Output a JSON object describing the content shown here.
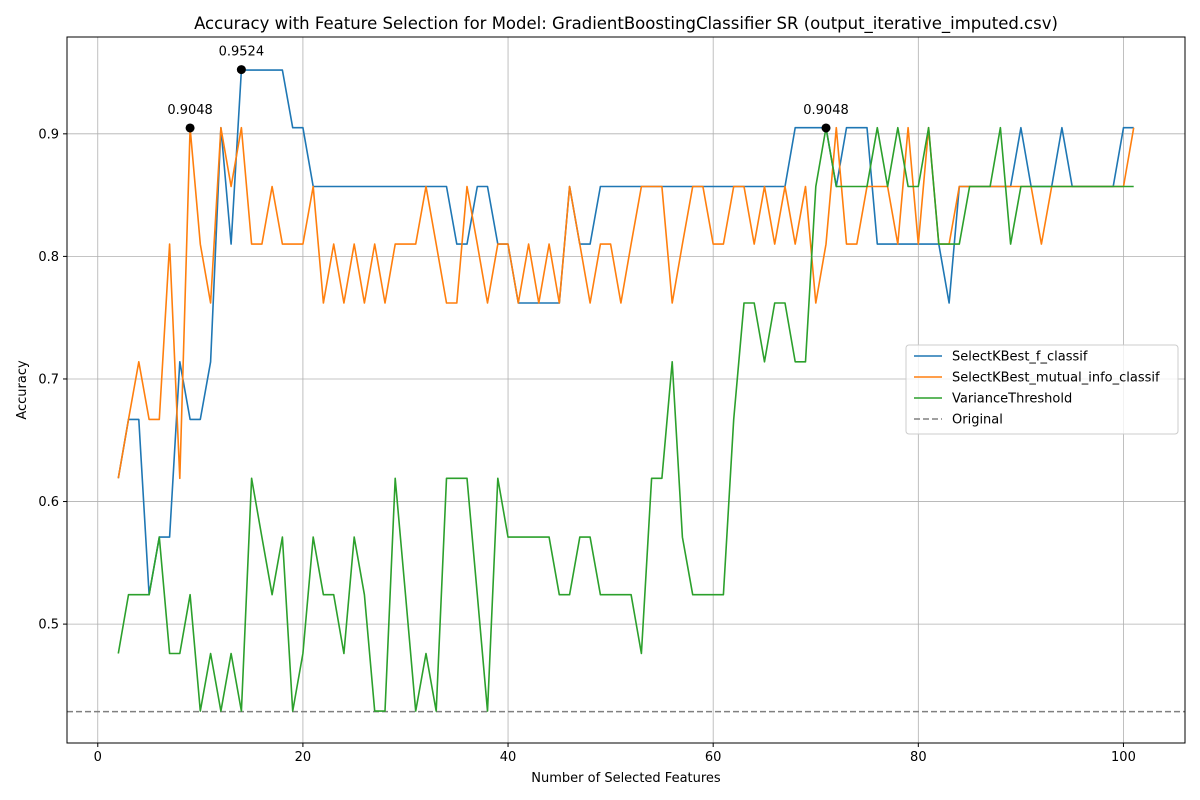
{
  "chart_data": {
    "type": "line",
    "title": "Accuracy with Feature Selection for Model: GradientBoostingClassifier SR (output_iterative_imputed.csv)",
    "xlabel": "Number of Selected Features",
    "ylabel": "Accuracy",
    "xlim": [
      -3,
      106
    ],
    "ylim": [
      0.403,
      0.979
    ],
    "xticks": [
      0,
      20,
      40,
      60,
      80,
      100
    ],
    "yticks": [
      0.5,
      0.6,
      0.7,
      0.8,
      0.9
    ],
    "ytick_labels": [
      "0.5",
      "0.6",
      "0.7",
      "0.8",
      "0.9"
    ],
    "grid": true,
    "legend_position": "center-right",
    "x": [
      2,
      3,
      4,
      5,
      6,
      7,
      8,
      9,
      10,
      11,
      12,
      13,
      14,
      15,
      16,
      17,
      18,
      19,
      20,
      21,
      22,
      23,
      24,
      25,
      26,
      27,
      28,
      29,
      30,
      31,
      32,
      33,
      34,
      35,
      36,
      37,
      38,
      39,
      40,
      41,
      42,
      43,
      44,
      45,
      46,
      47,
      48,
      49,
      50,
      51,
      52,
      53,
      54,
      55,
      56,
      57,
      58,
      59,
      60,
      61,
      62,
      63,
      64,
      65,
      66,
      67,
      68,
      69,
      70,
      71,
      72,
      73,
      74,
      75,
      76,
      77,
      78,
      79,
      80,
      81,
      82,
      83,
      84,
      85,
      86,
      87,
      88,
      89,
      90,
      91,
      92,
      93,
      94,
      95,
      96,
      97,
      98,
      99,
      100,
      101
    ],
    "series": [
      {
        "name": "SelectKBest_f_classif",
        "color": "#1f77b4",
        "style": "solid",
        "values": [
          0.619,
          0.667,
          0.667,
          0.524,
          0.571,
          0.571,
          0.714,
          0.667,
          0.667,
          0.714,
          0.905,
          0.81,
          0.952,
          0.952,
          0.952,
          0.952,
          0.952,
          0.905,
          0.905,
          0.857,
          0.857,
          0.857,
          0.857,
          0.857,
          0.857,
          0.857,
          0.857,
          0.857,
          0.857,
          0.857,
          0.857,
          0.857,
          0.857,
          0.81,
          0.81,
          0.857,
          0.857,
          0.81,
          0.81,
          0.762,
          0.762,
          0.762,
          0.762,
          0.762,
          0.857,
          0.81,
          0.81,
          0.857,
          0.857,
          0.857,
          0.857,
          0.857,
          0.857,
          0.857,
          0.857,
          0.857,
          0.857,
          0.857,
          0.857,
          0.857,
          0.857,
          0.857,
          0.857,
          0.857,
          0.857,
          0.857,
          0.905,
          0.905,
          0.905,
          0.905,
          0.857,
          0.905,
          0.905,
          0.905,
          0.81,
          0.81,
          0.81,
          0.81,
          0.81,
          0.81,
          0.81,
          0.762,
          0.857,
          0.857,
          0.857,
          0.857,
          0.857,
          0.857,
          0.905,
          0.857,
          0.857,
          0.857,
          0.905,
          0.857,
          0.857,
          0.857,
          0.857,
          0.857,
          0.905,
          0.905
        ]
      },
      {
        "name": "SelectKBest_mutual_info_classif",
        "color": "#ff7f0e",
        "style": "solid",
        "values": [
          0.619,
          0.667,
          0.714,
          0.667,
          0.667,
          0.81,
          0.619,
          0.905,
          0.81,
          0.762,
          0.905,
          0.857,
          0.905,
          0.81,
          0.81,
          0.857,
          0.81,
          0.81,
          0.81,
          0.857,
          0.762,
          0.81,
          0.762,
          0.81,
          0.762,
          0.81,
          0.762,
          0.81,
          0.81,
          0.81,
          0.857,
          0.81,
          0.762,
          0.762,
          0.857,
          0.81,
          0.762,
          0.81,
          0.81,
          0.762,
          0.81,
          0.762,
          0.81,
          0.762,
          0.857,
          0.81,
          0.762,
          0.81,
          0.81,
          0.762,
          0.81,
          0.857,
          0.857,
          0.857,
          0.762,
          0.81,
          0.857,
          0.857,
          0.81,
          0.81,
          0.857,
          0.857,
          0.81,
          0.857,
          0.81,
          0.857,
          0.81,
          0.857,
          0.762,
          0.81,
          0.905,
          0.81,
          0.81,
          0.857,
          0.857,
          0.857,
          0.81,
          0.905,
          0.81,
          0.905,
          0.81,
          0.81,
          0.857,
          0.857,
          0.857,
          0.857,
          0.857,
          0.857,
          0.857,
          0.857,
          0.81,
          0.857,
          0.857,
          0.857,
          0.857,
          0.857,
          0.857,
          0.857,
          0.857,
          0.905
        ]
      },
      {
        "name": "VarianceThreshold",
        "color": "#2ca02c",
        "style": "solid",
        "values": [
          0.476,
          0.524,
          0.524,
          0.524,
          0.571,
          0.476,
          0.476,
          0.524,
          0.429,
          0.476,
          0.429,
          0.476,
          0.429,
          0.619,
          0.571,
          0.524,
          0.571,
          0.429,
          0.476,
          0.571,
          0.524,
          0.524,
          0.476,
          0.571,
          0.524,
          0.429,
          0.429,
          0.619,
          0.524,
          0.429,
          0.476,
          0.429,
          0.619,
          0.619,
          0.619,
          0.524,
          0.429,
          0.619,
          0.571,
          0.571,
          0.571,
          0.571,
          0.571,
          0.524,
          0.524,
          0.571,
          0.571,
          0.524,
          0.524,
          0.524,
          0.524,
          0.476,
          0.619,
          0.619,
          0.714,
          0.571,
          0.524,
          0.524,
          0.524,
          0.524,
          0.667,
          0.762,
          0.762,
          0.714,
          0.762,
          0.762,
          0.714,
          0.714,
          0.857,
          0.905,
          0.857,
          0.857,
          0.857,
          0.857,
          0.905,
          0.857,
          0.905,
          0.857,
          0.857,
          0.905,
          0.81,
          0.81,
          0.81,
          0.857,
          0.857,
          0.857,
          0.905,
          0.81,
          0.857,
          0.857,
          0.857,
          0.857,
          0.857,
          0.857,
          0.857,
          0.857,
          0.857,
          0.857,
          0.857,
          0.857
        ]
      }
    ],
    "baseline": {
      "name": "Original",
      "value": 0.4286,
      "color": "#808080",
      "style": "dashed"
    },
    "annotations": [
      {
        "x": 9,
        "y": 0.9048,
        "label": "0.9048"
      },
      {
        "x": 14,
        "y": 0.9524,
        "label": "0.9524"
      },
      {
        "x": 71,
        "y": 0.9048,
        "label": "0.9048"
      }
    ]
  }
}
